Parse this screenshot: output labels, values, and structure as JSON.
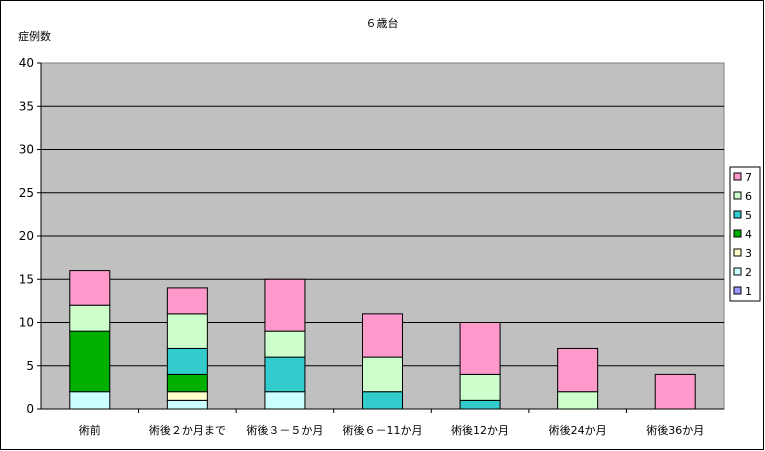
{
  "chart_data": {
    "type": "bar",
    "stacked": true,
    "title": "６歳台",
    "ylabel": "症例数",
    "xlabel": "",
    "ylim": [
      0,
      40
    ],
    "yticks": [
      0,
      5,
      10,
      15,
      20,
      25,
      30,
      35,
      40
    ],
    "grid": true,
    "legend_position": "right",
    "categories": [
      "術前",
      "術後２か月まで",
      "術後３－５か月",
      "術後６－11か月",
      "術後12か月",
      "術後24か月",
      "術後36か月"
    ],
    "series": [
      {
        "name": "1",
        "color": "#9999ff",
        "values": [
          0,
          0,
          0,
          0,
          0,
          0,
          0
        ]
      },
      {
        "name": "2",
        "color": "#ccffff",
        "values": [
          2,
          1,
          2,
          0,
          0,
          0,
          0
        ]
      },
      {
        "name": "3",
        "color": "#ffffcc",
        "values": [
          0,
          1,
          0,
          0,
          0,
          0,
          0
        ]
      },
      {
        "name": "4",
        "color": "#00b000",
        "values": [
          7,
          2,
          0,
          0,
          0,
          0,
          0
        ]
      },
      {
        "name": "5",
        "color": "#33cccc",
        "values": [
          0,
          3,
          4,
          2,
          1,
          0,
          0
        ]
      },
      {
        "name": "6",
        "color": "#ccffcc",
        "values": [
          3,
          4,
          3,
          4,
          3,
          2,
          0
        ]
      },
      {
        "name": "7",
        "color": "#ff99cc",
        "values": [
          4,
          3,
          6,
          5,
          6,
          5,
          4
        ]
      }
    ],
    "plot_background": "#c0c0c0"
  }
}
